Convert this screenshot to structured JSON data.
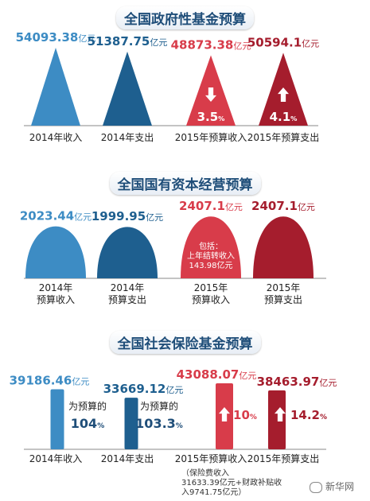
{
  "colors": {
    "blue_light": "#3d8cc4",
    "blue_dark": "#1e5f8f",
    "red_light": "#d83c4a",
    "red_dark": "#a51d2d",
    "axis": "#888888"
  },
  "sections": [
    {
      "title": "全国政府性基金预算"
    },
    {
      "title": "全国国有资本经营预算"
    },
    {
      "title": "全国社会保险基金预算"
    }
  ],
  "chart_data": [
    {
      "type": "bar",
      "title": "全国政府性基金预算",
      "unit": "亿元",
      "categories": [
        "2014年收入",
        "2014年支出",
        "2015年预算收入",
        "2015年预算支出"
      ],
      "values": [
        54093.38,
        51387.75,
        48873.38,
        50594.1
      ],
      "value_labels": [
        "54093.38",
        "51387.75",
        "48873.38",
        "50594.1"
      ],
      "changes": [
        {
          "index": 2,
          "direction": "down",
          "text": "3.5",
          "unit": "%"
        },
        {
          "index": 3,
          "direction": "up",
          "text": "4.1",
          "unit": "%"
        }
      ]
    },
    {
      "type": "bar",
      "title": "全国国有资本经营预算",
      "unit": "亿元",
      "categories": [
        "2014年预算收入",
        "2014年预算支出",
        "2015年预算收入",
        "2015年预算支出"
      ],
      "values": [
        2023.44,
        1999.95,
        2407.1,
        2407.1
      ],
      "value_labels": [
        "2023.44",
        "1999.95",
        "2407.1",
        "2407.1"
      ],
      "note": {
        "index": 2,
        "lines": [
          "包括：",
          "上年结转收入",
          "143.98亿元"
        ]
      }
    },
    {
      "type": "bar",
      "title": "全国社会保险基金预算",
      "unit": "亿元",
      "categories": [
        "2014年收入",
        "2014年支出",
        "2015年预算收入",
        "2015年预算支出"
      ],
      "values": [
        39186.46,
        33669.12,
        43088.07,
        38463.97
      ],
      "value_labels": [
        "39186.46",
        "33669.12",
        "43088.07",
        "38463.97"
      ],
      "budget_ratio": [
        {
          "index": 0,
          "prefix": "为预算的",
          "value": "104",
          "unit": "%"
        },
        {
          "index": 1,
          "prefix": "为预算的",
          "value": "103.3",
          "unit": "%"
        }
      ],
      "changes": [
        {
          "index": 2,
          "direction": "up",
          "text": "10",
          "unit": "%"
        },
        {
          "index": 3,
          "direction": "up",
          "text": "14.2",
          "unit": "%"
        }
      ],
      "footnote": [
        "（保险费收入",
        "31633.39亿元+财政补贴收",
        "入9741.75亿元）"
      ]
    }
  ],
  "watermark": "新华网"
}
